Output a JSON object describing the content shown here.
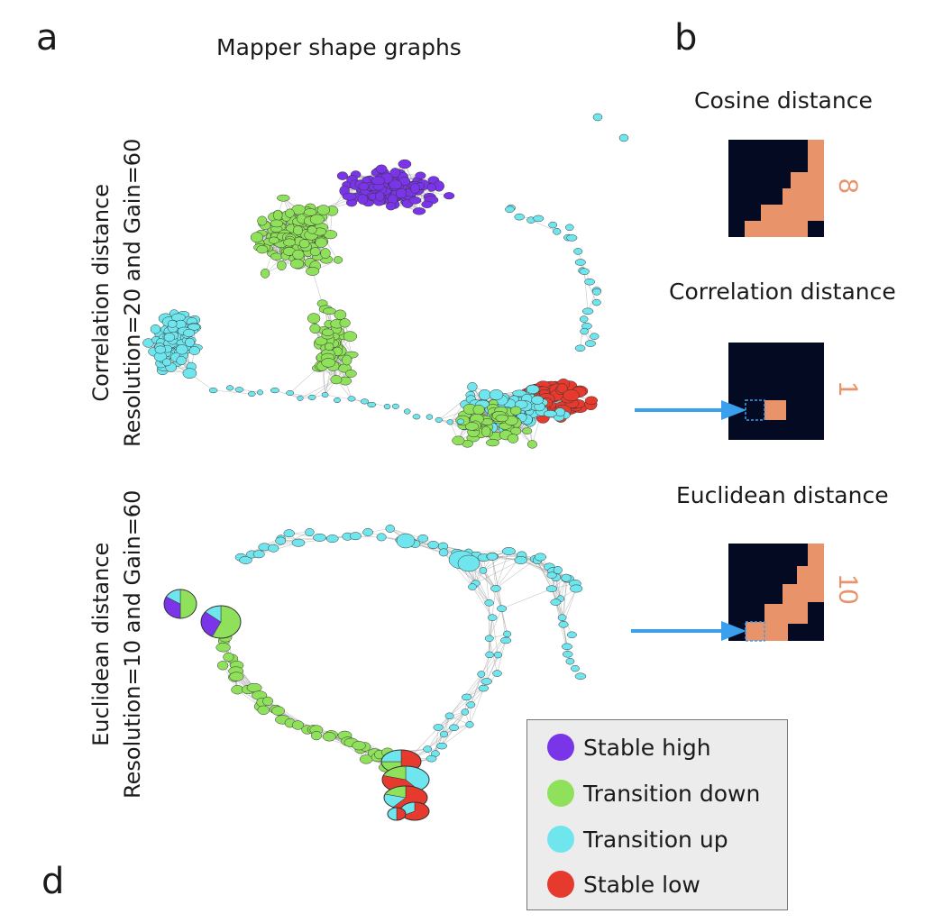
{
  "panels": {
    "a": "a",
    "b": "b",
    "d": "d"
  },
  "titles": {
    "main": "Mapper shape graphs",
    "row1": [
      "Correlation distance",
      "Resolution=20 and Gain=60"
    ],
    "row2": [
      "Euclidean distance",
      "Resolution=10 and Gain=60"
    ]
  },
  "matrices": [
    {
      "title": "Cosine distance",
      "value": "8",
      "has_arrow": false,
      "highlight": false
    },
    {
      "title": "Correlation distance",
      "value": "1",
      "has_arrow": true,
      "highlight": true
    },
    {
      "title": "Euclidean distance",
      "value": "10",
      "has_arrow": true,
      "highlight": true
    }
  ],
  "legend": [
    {
      "label": "Stable high",
      "color": "#7a35e8"
    },
    {
      "label": "Transition down",
      "color": "#8fe05a"
    },
    {
      "label": "Transition up",
      "color": "#6fe6ee"
    },
    {
      "label": "Stable low",
      "color": "#e63a2e"
    }
  ],
  "colors": {
    "matrix_dark": "#050a23",
    "matrix_fill": "#e8936a",
    "number": "#e8936a",
    "arrow": "#3aa0ee",
    "edge": "#a0a0a0"
  }
}
